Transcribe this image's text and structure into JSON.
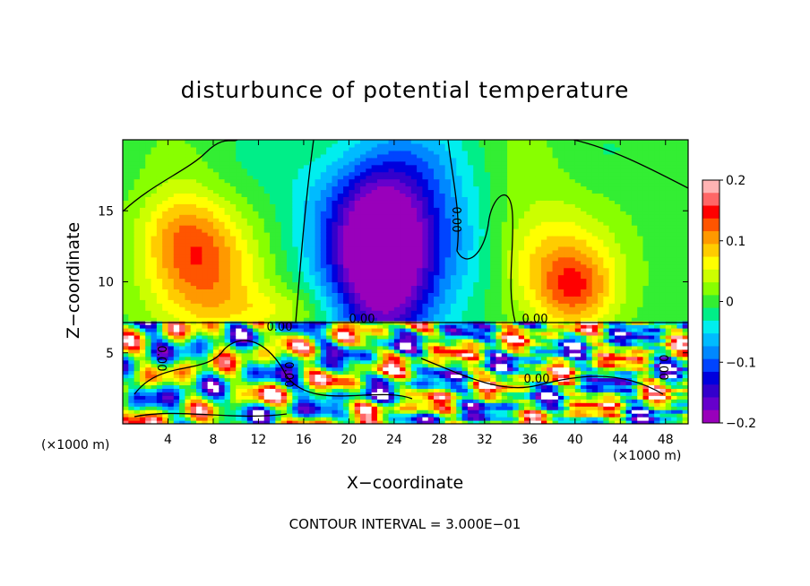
{
  "chart_data": {
    "type": "heatmap",
    "title": "disturbunce of potential temperature",
    "xlabel": "X−coordinate",
    "ylabel": "Z−coordinate",
    "x_unit": "(×1000 m)",
    "x_ticks": [
      4,
      8,
      12,
      16,
      20,
      24,
      28,
      32,
      36,
      40,
      44,
      48
    ],
    "y_ticks": [
      5,
      10,
      15
    ],
    "xlim": [
      0,
      50
    ],
    "ylim": [
      0,
      20
    ],
    "colorbar": {
      "ticks": [
        0.2,
        0.1,
        0,
        -0.1,
        -0.2
      ],
      "tick_labels": [
        "0.2",
        "0.1",
        "0",
        "−0.1",
        "−0.2"
      ],
      "range": [
        -0.2,
        0.2
      ],
      "colors": [
        "#ffb3b3",
        "#ff6666",
        "#ff0000",
        "#ff5500",
        "#ff9900",
        "#ffcc00",
        "#ffff00",
        "#ccff00",
        "#88ff00",
        "#33ee33",
        "#00ee88",
        "#00eeee",
        "#00bbff",
        "#0088ff",
        "#0044ff",
        "#0000dd",
        "#3300cc",
        "#6600cc",
        "#9900bb"
      ]
    },
    "contour_labels": [
      "0.00",
      "0.00",
      "0.00",
      "0.00",
      "0.00",
      "0.00",
      "0.00",
      "0.00"
    ],
    "contour_interval_text": "CONTOUR INTERVAL = 3.000E−01"
  }
}
